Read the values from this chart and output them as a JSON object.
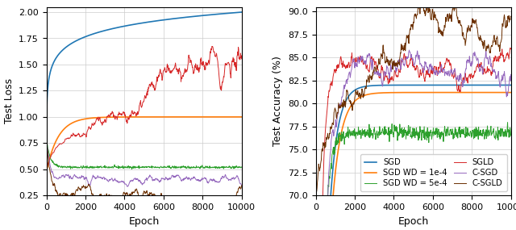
{
  "epochs": 10000,
  "n_points": 600,
  "left_ylim": [
    0.25,
    2.05
  ],
  "left_yticks": [
    0.25,
    0.5,
    0.75,
    1.0,
    1.25,
    1.5,
    1.75,
    2.0
  ],
  "right_ylim": [
    70.0,
    90.5
  ],
  "right_yticks": [
    70.0,
    72.5,
    75.0,
    77.5,
    80.0,
    82.5,
    85.0,
    87.5,
    90.0
  ],
  "xlim": [
    0,
    10000
  ],
  "xticks": [
    0,
    2000,
    4000,
    6000,
    8000,
    10000
  ],
  "colors": {
    "SGD": "#1f77b4",
    "SGD_WD1": "#ff7f0e",
    "SGD_WD5": "#2ca02c",
    "SGLD": "#d62728",
    "C_SGD": "#9467bd",
    "C_SGLD": "#6b2f00"
  },
  "legend_entries": [
    {
      "label": "SGD",
      "color": "#1f77b4"
    },
    {
      "label": "SGD WD = 1e-4",
      "color": "#ff7f0e"
    },
    {
      "label": "SGD WD = 5e-4",
      "color": "#2ca02c"
    },
    {
      "label": "SGLD",
      "color": "#d62728"
    },
    {
      "label": "C-SGD",
      "color": "#9467bd"
    },
    {
      "label": "C-SGLD",
      "color": "#6b2f00"
    }
  ],
  "xlabel": "Epoch",
  "left_ylabel": "Test Loss",
  "right_ylabel": "Test Accuracy (%)",
  "figsize": [
    6.4,
    2.85
  ],
  "dpi": 100
}
